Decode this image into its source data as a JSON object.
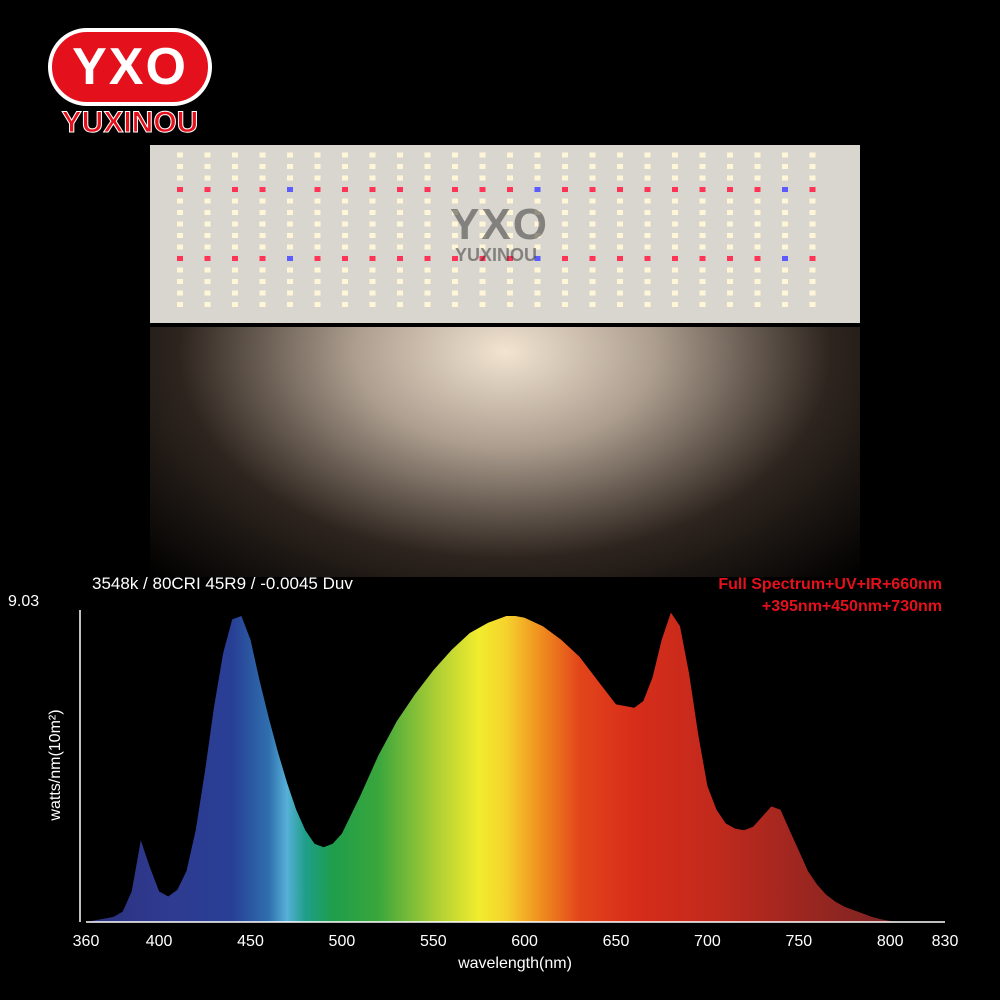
{
  "logo": {
    "mark": "YXO",
    "text": "YUXINOU"
  },
  "panel": {
    "watermark": "YXO",
    "watermark_sub": "YUXINOU"
  },
  "spec_label": "3548k / 80CRI 45R9 / -0.0045 Duv",
  "spectrum_title": [
    "Full  Spectrum+UV+IR+660nm",
    "+395nm+450nm+730nm"
  ],
  "colors": {
    "brand_red": "#e4111c",
    "background": "#000000"
  },
  "chart_data": {
    "type": "area",
    "title": "",
    "xlabel": "wavelength(nm)",
    "ylabel": "watts/nm(10m²)",
    "ymax_label": "9.03",
    "xlim": [
      360,
      830
    ],
    "ylim": [
      0,
      9.03
    ],
    "x_ticks": [
      360,
      400,
      450,
      500,
      550,
      600,
      650,
      700,
      750,
      800,
      830
    ],
    "grid": false,
    "series": [
      {
        "x": [
          360,
          365,
          370,
          375,
          380,
          385,
          390,
          395,
          400,
          405,
          410,
          415,
          420,
          425,
          430,
          435,
          440,
          445,
          450,
          455,
          460,
          465,
          470,
          475,
          480,
          485,
          490,
          495,
          500,
          510,
          520,
          530,
          540,
          550,
          560,
          570,
          580,
          590,
          595,
          600,
          610,
          620,
          630,
          640,
          650,
          660,
          665,
          670,
          675,
          680,
          685,
          690,
          695,
          700,
          705,
          710,
          715,
          720,
          725,
          730,
          735,
          740,
          745,
          750,
          755,
          760,
          765,
          770,
          775,
          780,
          785,
          790,
          795,
          800,
          805
        ],
        "y": [
          0.0,
          0.05,
          0.1,
          0.15,
          0.3,
          0.9,
          2.4,
          1.6,
          0.9,
          0.75,
          0.95,
          1.5,
          2.7,
          4.4,
          6.3,
          7.9,
          8.9,
          9.0,
          8.3,
          7.1,
          6.0,
          5.0,
          4.1,
          3.3,
          2.7,
          2.3,
          2.2,
          2.3,
          2.6,
          3.7,
          4.9,
          5.9,
          6.7,
          7.4,
          8.0,
          8.5,
          8.8,
          9.0,
          9.0,
          8.95,
          8.7,
          8.3,
          7.8,
          7.1,
          6.4,
          6.3,
          6.5,
          7.2,
          8.3,
          9.1,
          8.7,
          7.3,
          5.5,
          4.0,
          3.3,
          2.9,
          2.75,
          2.7,
          2.8,
          3.1,
          3.4,
          3.3,
          2.7,
          2.1,
          1.5,
          1.1,
          0.8,
          0.6,
          0.45,
          0.35,
          0.25,
          0.15,
          0.08,
          0.03,
          0.0
        ]
      }
    ]
  }
}
